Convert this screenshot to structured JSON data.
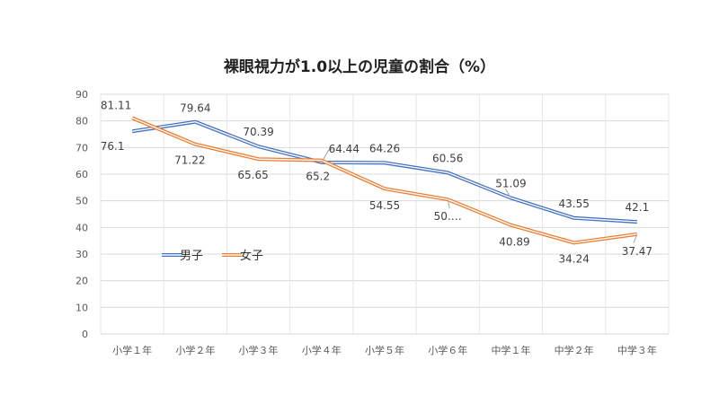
{
  "chart_data": {
    "type": "line",
    "title": "裸眼視力が1.0以上の児童の割合（%）",
    "xlabel": "",
    "ylabel": "",
    "categories": [
      "小学１年",
      "小学２年",
      "小学３年",
      "小学４年",
      "小学５年",
      "小学６年",
      "中学１年",
      "中学２年",
      "中学３年"
    ],
    "ylim": [
      0,
      90
    ],
    "yticks": [
      0,
      10,
      20,
      30,
      40,
      50,
      60,
      70,
      80,
      90
    ],
    "grid": true,
    "legend": "left-middle",
    "series": [
      {
        "name": "男子",
        "color": "#4472C4",
        "values": [
          76.1,
          79.64,
          70.39,
          64.44,
          64.26,
          60.56,
          51.09,
          43.55,
          42.1
        ],
        "labels": [
          "76.1",
          "79.64",
          "70.39",
          "64.44",
          "64.26",
          "60.56",
          "51.09",
          "43.55",
          "42.1"
        ]
      },
      {
        "name": "女子",
        "color": "#ED7D31",
        "values": [
          81.11,
          71.22,
          65.65,
          65.2,
          54.55,
          50.5,
          40.89,
          34.24,
          37.47
        ],
        "labels": [
          "81.11",
          "71.22",
          "65.65",
          "65.2",
          "54.55",
          "50.…",
          "40.89",
          "34.24",
          "37.47"
        ]
      }
    ]
  }
}
